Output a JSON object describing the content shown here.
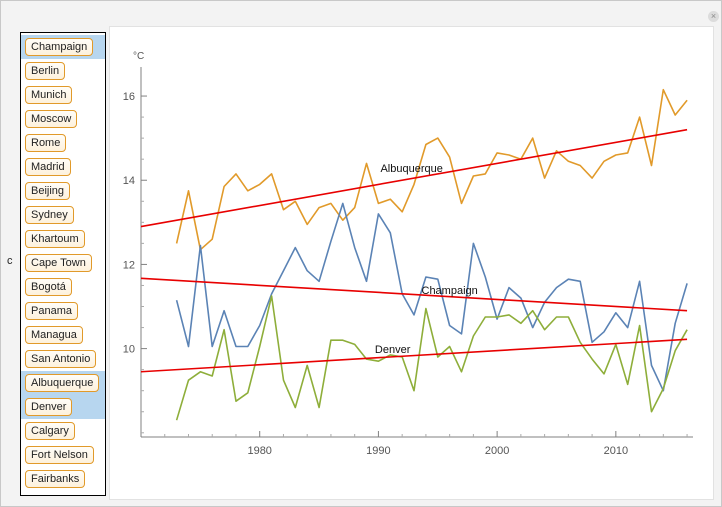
{
  "window": {
    "close_symbol": "×"
  },
  "control_label": "c",
  "cities": [
    {
      "label": "Champaign",
      "selected": true
    },
    {
      "label": "Berlin",
      "selected": false
    },
    {
      "label": "Munich",
      "selected": false
    },
    {
      "label": "Moscow",
      "selected": false
    },
    {
      "label": "Rome",
      "selected": false
    },
    {
      "label": "Madrid",
      "selected": false
    },
    {
      "label": "Beijing",
      "selected": false
    },
    {
      "label": "Sydney",
      "selected": false
    },
    {
      "label": "Khartoum",
      "selected": false
    },
    {
      "label": "Cape Town",
      "selected": false
    },
    {
      "label": "Bogotá",
      "selected": false
    },
    {
      "label": "Panama",
      "selected": false
    },
    {
      "label": "Managua",
      "selected": false
    },
    {
      "label": "San Antonio",
      "selected": false
    },
    {
      "label": "Albuquerque",
      "selected": true
    },
    {
      "label": "Denver",
      "selected": true
    },
    {
      "label": "Calgary",
      "selected": false
    },
    {
      "label": "Fort Nelson",
      "selected": false
    },
    {
      "label": "Fairbanks",
      "selected": false
    }
  ],
  "colors": {
    "Albuquerque": "#e19a2a",
    "Champaign": "#5b83b5",
    "Denver": "#8eae3a",
    "trend": "#e80000",
    "axis": "#808080",
    "panel_selected": "#b7d6ef",
    "button_border": "#e19a2a"
  },
  "chart_data": {
    "type": "line",
    "ylabel": "°C",
    "xlabel": "",
    "xlim": [
      1970,
      2016.5
    ],
    "ylim": [
      7.9,
      16.5
    ],
    "x_ticks": [
      1980,
      1990,
      2000,
      2010
    ],
    "y_ticks": [
      10,
      12,
      14,
      16
    ],
    "x": [
      1973,
      1974,
      1975,
      1976,
      1977,
      1978,
      1979,
      1980,
      1981,
      1982,
      1983,
      1984,
      1985,
      1986,
      1987,
      1988,
      1989,
      1990,
      1991,
      1992,
      1993,
      1994,
      1995,
      1996,
      1997,
      1998,
      1999,
      2000,
      2001,
      2002,
      2003,
      2004,
      2005,
      2006,
      2007,
      2008,
      2009,
      2010,
      2011,
      2012,
      2013,
      2014,
      2015,
      2016
    ],
    "series": [
      {
        "name": "Albuquerque",
        "values": [
          12.5,
          13.75,
          12.35,
          12.6,
          13.85,
          14.15,
          13.75,
          13.9,
          14.15,
          13.3,
          13.5,
          12.95,
          13.35,
          13.45,
          13.05,
          13.35,
          14.4,
          13.45,
          13.55,
          13.25,
          13.9,
          14.85,
          15.0,
          14.55,
          13.45,
          14.1,
          14.15,
          14.65,
          14.6,
          14.5,
          15.0,
          14.05,
          14.7,
          14.45,
          14.35,
          14.05,
          14.45,
          14.6,
          14.65,
          15.5,
          14.35,
          16.15,
          15.55,
          15.9
        ]
      },
      {
        "name": "Champaign",
        "values": [
          11.15,
          10.05,
          12.45,
          10.05,
          10.9,
          10.05,
          10.05,
          10.55,
          11.3,
          11.85,
          12.4,
          11.85,
          11.6,
          12.55,
          13.45,
          12.4,
          11.6,
          13.2,
          12.75,
          11.3,
          10.8,
          11.7,
          11.65,
          10.55,
          10.35,
          12.5,
          11.7,
          10.7,
          11.45,
          11.2,
          10.5,
          11.1,
          11.45,
          11.65,
          11.6,
          10.15,
          10.4,
          10.85,
          10.5,
          11.6,
          9.6,
          9.0,
          10.6,
          11.55
        ]
      },
      {
        "name": "Denver",
        "values": [
          8.3,
          9.25,
          9.45,
          9.35,
          10.45,
          8.75,
          8.95,
          10.05,
          11.25,
          9.25,
          8.6,
          9.6,
          8.6,
          10.2,
          10.2,
          10.1,
          9.75,
          9.7,
          9.85,
          9.8,
          9.0,
          10.95,
          9.8,
          10.05,
          9.45,
          10.3,
          10.75,
          10.75,
          10.8,
          10.6,
          10.9,
          10.45,
          10.75,
          10.75,
          10.15,
          9.75,
          9.4,
          10.1,
          9.15,
          10.55,
          8.5,
          9.05,
          9.95,
          10.45
        ]
      }
    ],
    "trend_lines": [
      {
        "name": "Albuquerque",
        "x": [
          1970,
          2016
        ],
        "y": [
          12.9,
          15.2
        ]
      },
      {
        "name": "Champaign",
        "x": [
          1970,
          2016
        ],
        "y": [
          11.67,
          10.9
        ]
      },
      {
        "name": "Denver",
        "x": [
          1970,
          2016
        ],
        "y": [
          9.45,
          10.22
        ]
      }
    ],
    "annotations": [
      {
        "text": "Albuquerque",
        "x": 1992.8,
        "y": 14.2
      },
      {
        "text": "Champaign",
        "x": 1996.0,
        "y": 11.3
      },
      {
        "text": "Denver",
        "x": 1991.2,
        "y": 9.9
      }
    ],
    "grid": false,
    "legend": "none"
  }
}
